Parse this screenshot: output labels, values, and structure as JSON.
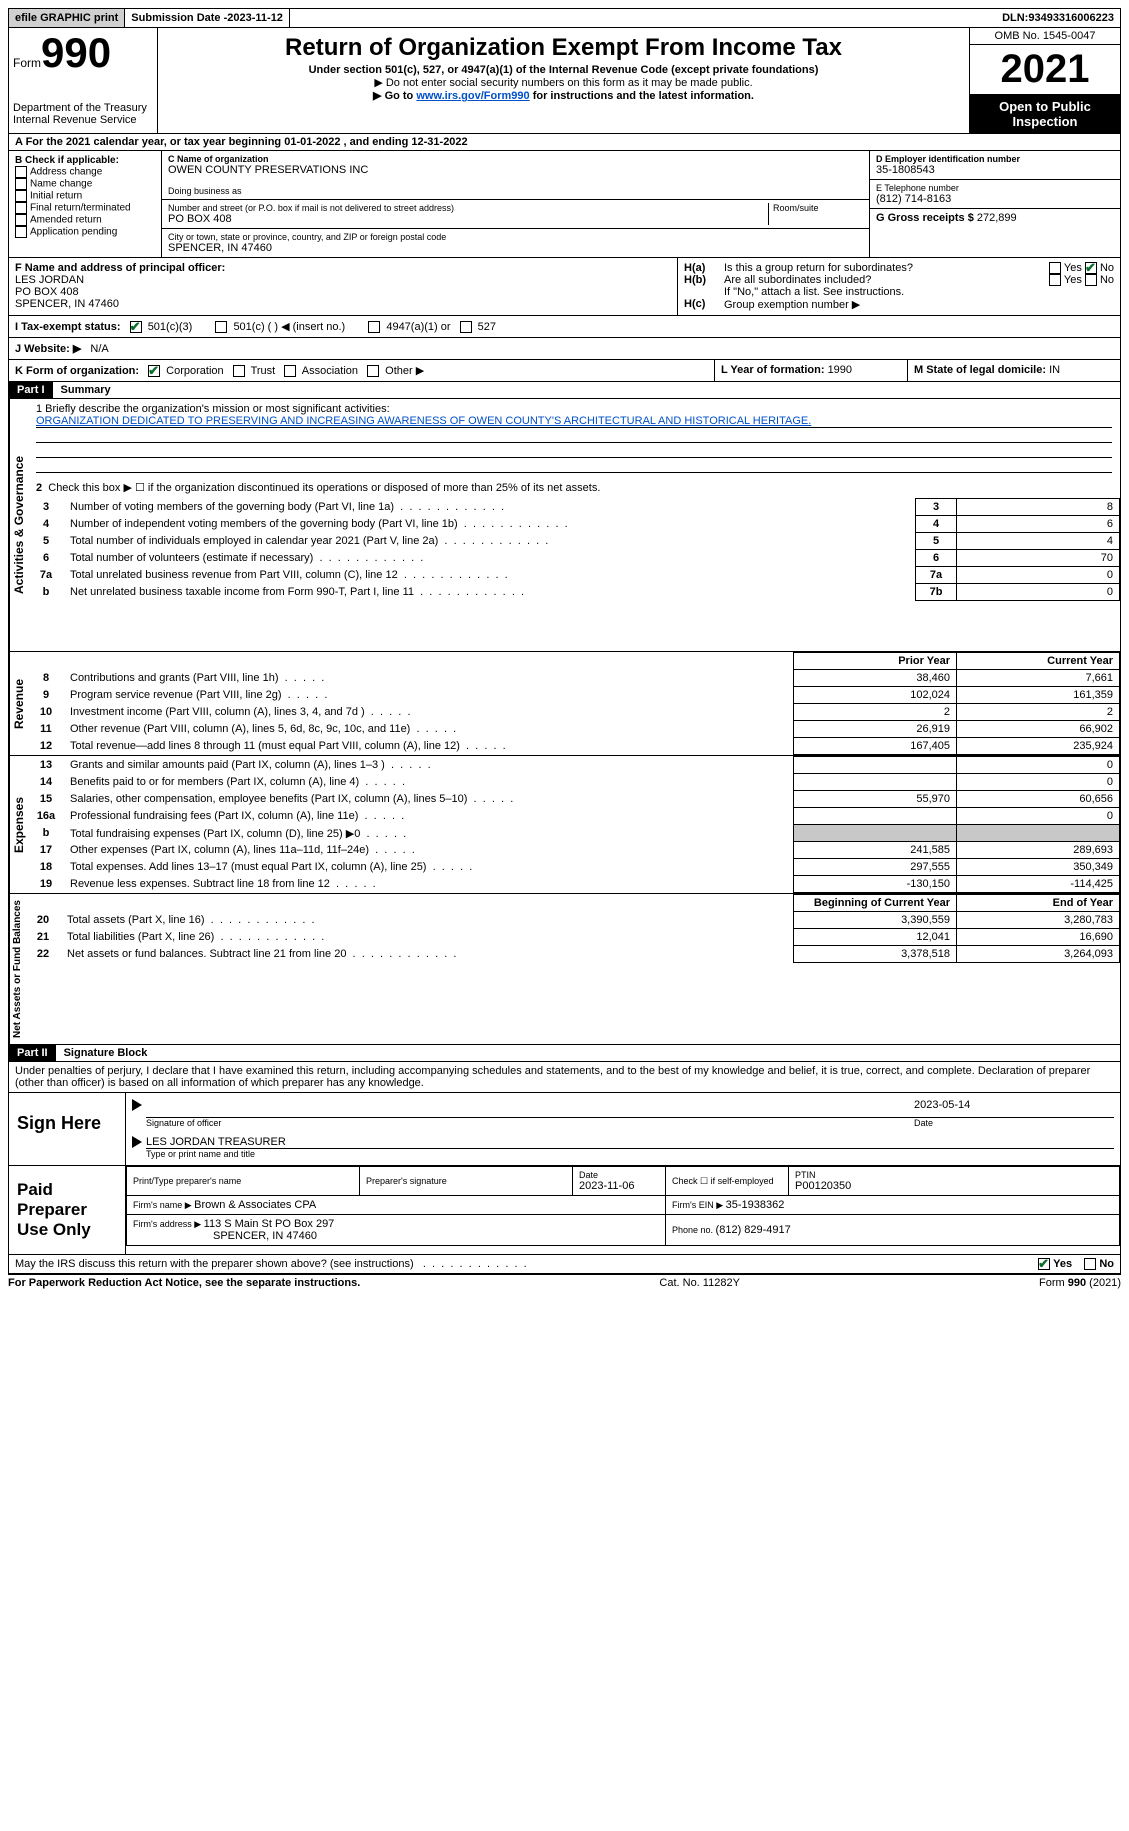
{
  "topbar": {
    "efile": "efile GRAPHIC print",
    "submission_label": "Submission Date - ",
    "submission_date": "2023-11-12",
    "dln_label": "DLN: ",
    "dln": "93493316006223"
  },
  "header": {
    "form_word": "Form",
    "form_num": "990",
    "dept": "Department of the Treasury",
    "irs": "Internal Revenue Service",
    "title": "Return of Organization Exempt From Income Tax",
    "subtitle": "Under section 501(c), 527, or 4947(a)(1) of the Internal Revenue Code (except private foundations)",
    "nossn": "▶ Do not enter social security numbers on this form as it may be made public.",
    "goto_pre": "▶ Go to ",
    "goto_link": "www.irs.gov/Form990",
    "goto_post": " for instructions and the latest information.",
    "omb": "OMB No. 1545-0047",
    "year": "2021",
    "inspection": "Open to Public Inspection"
  },
  "sectionA": {
    "text_pre": "A For the 2021 calendar year, or tax year beginning ",
    "begin": "01-01-2022",
    "mid": " , and ending ",
    "end": "12-31-2022"
  },
  "sectionB": {
    "label": "B Check if applicable:",
    "opts": [
      "Address change",
      "Name change",
      "Initial return",
      "Final return/terminated",
      "Amended return",
      "Application pending"
    ]
  },
  "sectionC": {
    "name_label": "C Name of organization",
    "name": "OWEN COUNTY PRESERVATIONS INC",
    "dba_label": "Doing business as",
    "addr_label": "Number and street (or P.O. box if mail is not delivered to street address)",
    "room_label": "Room/suite",
    "addr": "PO BOX 408",
    "city_label": "City or town, state or province, country, and ZIP or foreign postal code",
    "city": "SPENCER, IN  47460"
  },
  "sectionD": {
    "label": "D Employer identification number",
    "val": "35-1808543"
  },
  "sectionE": {
    "label": "E Telephone number",
    "val": "(812) 714-8163"
  },
  "sectionG": {
    "label": "G Gross receipts $ ",
    "val": "272,899"
  },
  "sectionF": {
    "label": "F  Name and address of principal officer:",
    "name": "LES JORDAN",
    "addr1": "PO BOX 408",
    "addr2": "SPENCER, IN  47460"
  },
  "sectionH": {
    "a": "Is this a group return for subordinates?",
    "b": "Are all subordinates included?",
    "note": "If \"No,\" attach a list. See instructions.",
    "c_label": "Group exemption number ▶",
    "ha_prefix": "H(a)",
    "hb_prefix": "H(b)",
    "hc_prefix": "H(c)",
    "yes": "Yes",
    "no": "No"
  },
  "sectionI": {
    "label": "I  Tax-exempt status:",
    "o1": "501(c)(3)",
    "o2": "501(c) (  ) ◀ (insert no.)",
    "o3": "4947(a)(1) or",
    "o4": "527"
  },
  "sectionJ": {
    "label": "J  Website: ▶",
    "val": "N/A"
  },
  "sectionK": {
    "label": "K Form of organization:",
    "opts": [
      "Corporation",
      "Trust",
      "Association",
      "Other ▶"
    ]
  },
  "sectionL": {
    "label": "L Year of formation: ",
    "val": "1990"
  },
  "sectionM": {
    "label": "M State of legal domicile: ",
    "val": "IN"
  },
  "part1": {
    "tag": "Part I",
    "title": "Summary"
  },
  "mission": {
    "label": "1   Briefly describe the organization's mission or most significant activities:",
    "text": "ORGANIZATION DEDICATED TO PRESERVING AND INCREASING AWARENESS OF OWEN COUNTY'S ARCHITECTURAL AND HISTORICAL HERITAGE."
  },
  "line2": "Check this box ▶ ☐  if the organization discontinued its operations or disposed of more than 25% of its net assets.",
  "vtabs": {
    "gov": "Activities & Governance",
    "rev": "Revenue",
    "exp": "Expenses",
    "net": "Net Assets or Fund Balances"
  },
  "govLines": [
    {
      "n": "3",
      "t": "Number of voting members of the governing body (Part VI, line 1a)",
      "c": "3",
      "v": "8"
    },
    {
      "n": "4",
      "t": "Number of independent voting members of the governing body (Part VI, line 1b)",
      "c": "4",
      "v": "6"
    },
    {
      "n": "5",
      "t": "Total number of individuals employed in calendar year 2021 (Part V, line 2a)",
      "c": "5",
      "v": "4"
    },
    {
      "n": "6",
      "t": "Total number of volunteers (estimate if necessary)",
      "c": "6",
      "v": "70"
    },
    {
      "n": "7a",
      "t": "Total unrelated business revenue from Part VIII, column (C), line 12",
      "c": "7a",
      "v": "0"
    },
    {
      "n": "b",
      "t": "Net unrelated business taxable income from Form 990-T, Part I, line 11",
      "c": "7b",
      "v": "0"
    }
  ],
  "colHeaders": {
    "prior": "Prior Year",
    "current": "Current Year",
    "boy": "Beginning of Current Year",
    "eoy": "End of Year"
  },
  "revLines": [
    {
      "n": "8",
      "t": "Contributions and grants (Part VIII, line 1h)",
      "p": "38,460",
      "c": "7,661"
    },
    {
      "n": "9",
      "t": "Program service revenue (Part VIII, line 2g)",
      "p": "102,024",
      "c": "161,359"
    },
    {
      "n": "10",
      "t": "Investment income (Part VIII, column (A), lines 3, 4, and 7d )",
      "p": "2",
      "c": "2"
    },
    {
      "n": "11",
      "t": "Other revenue (Part VIII, column (A), lines 5, 6d, 8c, 9c, 10c, and 11e)",
      "p": "26,919",
      "c": "66,902"
    },
    {
      "n": "12",
      "t": "Total revenue—add lines 8 through 11 (must equal Part VIII, column (A), line 12)",
      "p": "167,405",
      "c": "235,924"
    }
  ],
  "expLines": [
    {
      "n": "13",
      "t": "Grants and similar amounts paid (Part IX, column (A), lines 1–3 )",
      "p": "",
      "c": "0"
    },
    {
      "n": "14",
      "t": "Benefits paid to or for members (Part IX, column (A), line 4)",
      "p": "",
      "c": "0"
    },
    {
      "n": "15",
      "t": "Salaries, other compensation, employee benefits (Part IX, column (A), lines 5–10)",
      "p": "55,970",
      "c": "60,656"
    },
    {
      "n": "16a",
      "t": "Professional fundraising fees (Part IX, column (A), line 11e)",
      "p": "",
      "c": "0"
    },
    {
      "n": "b",
      "t": "Total fundraising expenses (Part IX, column (D), line 25) ▶0",
      "p": "grey",
      "c": "grey"
    },
    {
      "n": "17",
      "t": "Other expenses (Part IX, column (A), lines 11a–11d, 11f–24e)",
      "p": "241,585",
      "c": "289,693"
    },
    {
      "n": "18",
      "t": "Total expenses. Add lines 13–17 (must equal Part IX, column (A), line 25)",
      "p": "297,555",
      "c": "350,349"
    },
    {
      "n": "19",
      "t": "Revenue less expenses. Subtract line 18 from line 12",
      "p": "-130,150",
      "c": "-114,425"
    }
  ],
  "netLines": [
    {
      "n": "20",
      "t": "Total assets (Part X, line 16)",
      "p": "3,390,559",
      "c": "3,280,783"
    },
    {
      "n": "21",
      "t": "Total liabilities (Part X, line 26)",
      "p": "12,041",
      "c": "16,690"
    },
    {
      "n": "22",
      "t": "Net assets or fund balances. Subtract line 21 from line 20",
      "p": "3,378,518",
      "c": "3,264,093"
    }
  ],
  "part2": {
    "tag": "Part II",
    "title": "Signature Block"
  },
  "perjury": "Under penalties of perjury, I declare that I have examined this return, including accompanying schedules and statements, and to the best of my knowledge and belief, it is true, correct, and complete. Declaration of preparer (other than officer) is based on all information of which preparer has any knowledge.",
  "sign": {
    "here": "Sign Here",
    "sig_label": "Signature of officer",
    "date": "2023-05-14",
    "date_label": "Date",
    "name": "LES JORDAN  TREASURER",
    "name_label": "Type or print name and title"
  },
  "prep": {
    "label": "Paid Preparer Use Only",
    "pt_label": "Print/Type preparer's name",
    "sig_label": "Preparer's signature",
    "date_label": "Date",
    "date": "2023-11-06",
    "check_label": "Check ☐ if self-employed",
    "ptin_label": "PTIN",
    "ptin": "P00120350",
    "firm_name_label": "Firm's name   ▶ ",
    "firm_name": "Brown & Associates CPA",
    "ein_label": "Firm's EIN ▶ ",
    "ein": "35-1938362",
    "addr_label": "Firm's address ▶ ",
    "addr1": "113 S Main St PO Box 297",
    "addr2": "SPENCER, IN  47460",
    "phone_label": "Phone no. ",
    "phone": "(812) 829-4917"
  },
  "discuss": {
    "q": "May the IRS discuss this return with the preparer shown above? (see instructions)",
    "yes": "Yes",
    "no": "No"
  },
  "footer": {
    "pra": "For Paperwork Reduction Act Notice, see the separate instructions.",
    "cat": "Cat. No. 11282Y",
    "form": "Form 990 (2021)"
  }
}
